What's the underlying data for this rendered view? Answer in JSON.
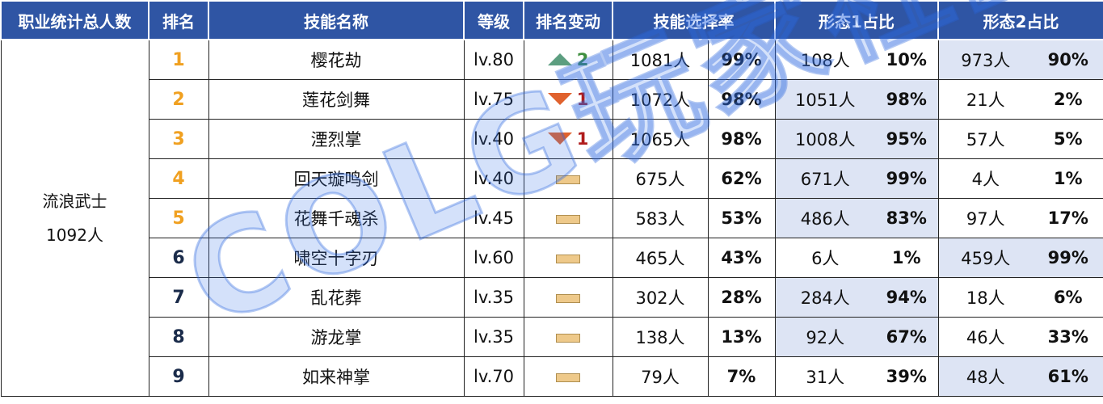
{
  "headers": {
    "total": "职业统计总人数",
    "rank": "排名",
    "skill": "技能名称",
    "level": "等级",
    "change": "排名变动",
    "rate": "技能选择率",
    "form1": "形态1占比",
    "form2": "形态2占比"
  },
  "job": {
    "name": "流浪武士",
    "count": "1092人"
  },
  "rows": [
    {
      "rank": "1",
      "skill": "樱花劫",
      "level": "lv.80",
      "change": "up",
      "change_value": "2",
      "rate_count": "1081人",
      "rate_pct": "99%",
      "f1_count": "108人",
      "f1_pct": "10%",
      "f2_count": "973人",
      "f2_pct": "90%"
    },
    {
      "rank": "2",
      "skill": "莲花剑舞",
      "level": "lv.75",
      "change": "down",
      "change_value": "1",
      "rate_count": "1072人",
      "rate_pct": "98%",
      "f1_count": "1051人",
      "f1_pct": "98%",
      "f2_count": "21人",
      "f2_pct": "2%"
    },
    {
      "rank": "3",
      "skill": "湮烈掌",
      "level": "lv.40",
      "change": "down",
      "change_value": "1",
      "rate_count": "1065人",
      "rate_pct": "98%",
      "f1_count": "1008人",
      "f1_pct": "95%",
      "f2_count": "57人",
      "f2_pct": "5%"
    },
    {
      "rank": "4",
      "skill": "回天璇鸣剑",
      "level": "lv.40",
      "change": "same",
      "change_value": "",
      "rate_count": "675人",
      "rate_pct": "62%",
      "f1_count": "671人",
      "f1_pct": "99%",
      "f2_count": "4人",
      "f2_pct": "1%"
    },
    {
      "rank": "5",
      "skill": "花舞千魂杀",
      "level": "lv.45",
      "change": "same",
      "change_value": "",
      "rate_count": "583人",
      "rate_pct": "53%",
      "f1_count": "486人",
      "f1_pct": "83%",
      "f2_count": "97人",
      "f2_pct": "17%"
    },
    {
      "rank": "6",
      "skill": "啸空十字刃",
      "level": "lv.60",
      "change": "same",
      "change_value": "",
      "rate_count": "465人",
      "rate_pct": "43%",
      "f1_count": "6人",
      "f1_pct": "1%",
      "f2_count": "459人",
      "f2_pct": "99%"
    },
    {
      "rank": "7",
      "skill": "乱花葬",
      "level": "lv.35",
      "change": "same",
      "change_value": "",
      "rate_count": "302人",
      "rate_pct": "28%",
      "f1_count": "284人",
      "f1_pct": "94%",
      "f2_count": "18人",
      "f2_pct": "6%"
    },
    {
      "rank": "8",
      "skill": "游龙掌",
      "level": "lv.35",
      "change": "same",
      "change_value": "",
      "rate_count": "138人",
      "rate_pct": "13%",
      "f1_count": "92人",
      "f1_pct": "67%",
      "f2_count": "46人",
      "f2_pct": "33%"
    },
    {
      "rank": "9",
      "skill": "如来神掌",
      "level": "lv.70",
      "change": "same",
      "change_value": "",
      "rate_count": "79人",
      "rate_pct": "7%",
      "f1_count": "31人",
      "f1_pct": "39%",
      "f2_count": "48人",
      "f2_pct": "61%"
    }
  ],
  "watermark": "COLG玩家社区",
  "colors": {
    "header_bg": "#2f55a4",
    "highlight_bg": "#dde4f4",
    "rank_top": "#f0a020",
    "up": "#3f8f3f",
    "down": "#b01c1c"
  }
}
